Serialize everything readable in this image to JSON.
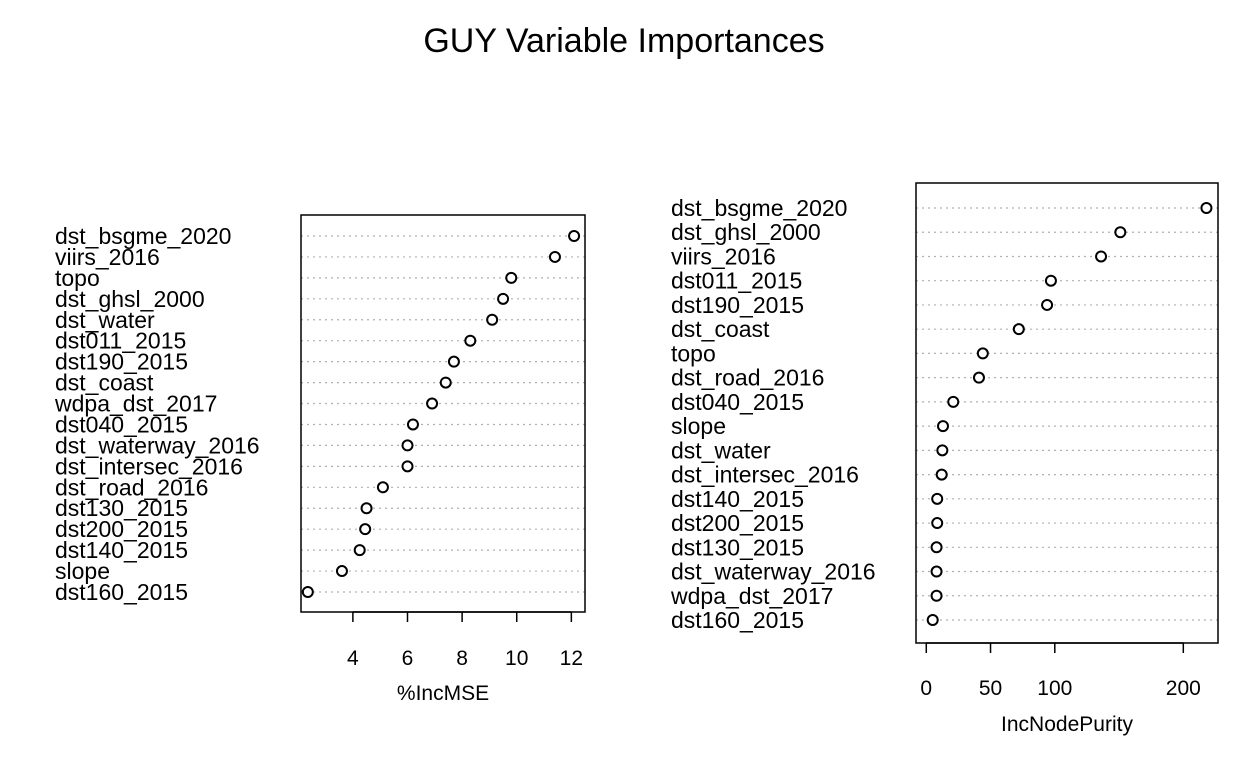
{
  "title": "GUY Variable Importances",
  "chart_data": [
    {
      "type": "scatter",
      "plot": "dotchart",
      "xlabel": "%IncMSE",
      "xticks": [
        4,
        6,
        8,
        10,
        12
      ],
      "xlim": [
        2.1,
        12.5
      ],
      "grid": "dotted horizontal",
      "categories": [
        "dst_bsgme_2020",
        "viirs_2016",
        "topo",
        "dst_ghsl_2000",
        "dst_water",
        "dst011_2015",
        "dst190_2015",
        "dst_coast",
        "wdpa_dst_2017",
        "dst040_2015",
        "dst_waterway_2016",
        "dst_intersec_2016",
        "dst_road_2016",
        "dst130_2015",
        "dst200_2015",
        "dst140_2015",
        "slope",
        "dst160_2015"
      ],
      "values": [
        12.1,
        11.4,
        9.8,
        9.5,
        9.1,
        8.3,
        7.7,
        7.4,
        6.9,
        6.2,
        6.0,
        6.0,
        5.1,
        4.5,
        4.45,
        4.25,
        3.6,
        2.35
      ]
    },
    {
      "type": "scatter",
      "plot": "dotchart",
      "xlabel": "IncNodePurity",
      "xticks": [
        0,
        50,
        100,
        200
      ],
      "xlim": [
        -8,
        227
      ],
      "grid": "dotted horizontal",
      "categories": [
        "dst_bsgme_2020",
        "dst_ghsl_2000",
        "viirs_2016",
        "dst011_2015",
        "dst190_2015",
        "dst_coast",
        "topo",
        "dst_road_2016",
        "dst040_2015",
        "slope",
        "dst_water",
        "dst_intersec_2016",
        "dst140_2015",
        "dst200_2015",
        "dst130_2015",
        "dst_waterway_2016",
        "wdpa_dst_2017",
        "dst160_2015"
      ],
      "values": [
        218,
        151,
        136,
        97,
        94,
        72,
        44,
        41,
        21,
        13,
        12.5,
        12,
        8.5,
        8.5,
        8,
        8,
        8,
        5
      ]
    }
  ]
}
